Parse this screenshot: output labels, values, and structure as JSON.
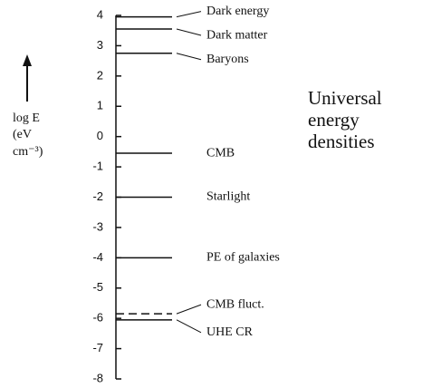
{
  "chart_data": {
    "type": "levels",
    "ylabel": [
      "log E",
      "(eV",
      "cm⁻³)"
    ],
    "annotation": [
      "Universal",
      "energy",
      "densities"
    ],
    "ylim": [
      -8,
      4
    ],
    "yticks": [
      -8,
      -7,
      -6,
      -5,
      -4,
      -3,
      -2,
      -1,
      0,
      1,
      2,
      3,
      4
    ],
    "color": "#111111",
    "series": [
      {
        "name": "Dark energy",
        "values": [
          3.95
        ],
        "style": "solid"
      },
      {
        "name": "Dark matter",
        "values": [
          3.55
        ],
        "style": "solid"
      },
      {
        "name": "Baryons",
        "values": [
          2.75
        ],
        "style": "solid"
      },
      {
        "name": "CMB",
        "values": [
          -0.55
        ],
        "style": "solid"
      },
      {
        "name": "Starlight",
        "values": [
          -2.0
        ],
        "style": "solid"
      },
      {
        "name": "PE of galaxies",
        "values": [
          -4.0
        ],
        "style": "solid"
      },
      {
        "name": "CMB fluct.",
        "values": [
          -5.85
        ],
        "style": "dashed"
      },
      {
        "name": "UHE CR",
        "values": [
          -6.05
        ],
        "style": "solid"
      }
    ]
  }
}
